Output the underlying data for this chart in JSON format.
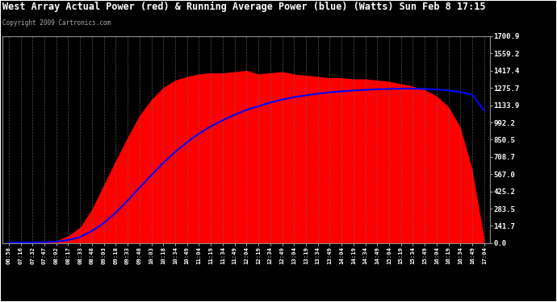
{
  "title": "West Array Actual Power (red) & Running Average Power (blue) (Watts) Sun Feb 8 17:15",
  "copyright": "Copyright 2009 Cartronics.com",
  "ylabel_values": [
    0.0,
    141.7,
    283.5,
    425.2,
    567.0,
    708.7,
    850.5,
    992.2,
    1133.9,
    1275.7,
    1417.4,
    1559.2,
    1700.9
  ],
  "ymax": 1700.9,
  "ymin": 0.0,
  "bg_color": "#000000",
  "plot_bg_color": "#000000",
  "grid_color": "#666666",
  "title_color": "#ffffff",
  "tick_color": "#ffffff",
  "red_color": "#ff0000",
  "blue_color": "#0000ff",
  "x_labels": [
    "06:58",
    "07:16",
    "07:32",
    "07:47",
    "08:02",
    "08:17",
    "08:33",
    "08:48",
    "09:03",
    "09:18",
    "09:33",
    "09:48",
    "10:03",
    "10:18",
    "10:34",
    "10:49",
    "11:04",
    "11:19",
    "11:34",
    "11:49",
    "12:04",
    "12:19",
    "12:34",
    "12:49",
    "13:04",
    "13:19",
    "13:34",
    "13:49",
    "14:04",
    "14:19",
    "14:34",
    "14:49",
    "15:04",
    "15:19",
    "15:34",
    "15:49",
    "16:04",
    "16:19",
    "16:34",
    "16:49",
    "17:04"
  ],
  "actual_power": [
    5,
    5,
    8,
    12,
    20,
    60,
    130,
    280,
    480,
    680,
    870,
    1050,
    1180,
    1280,
    1340,
    1370,
    1390,
    1400,
    1400,
    1410,
    1420,
    1390,
    1400,
    1410,
    1390,
    1380,
    1370,
    1360,
    1360,
    1350,
    1350,
    1340,
    1330,
    1310,
    1290,
    1260,
    1210,
    1120,
    950,
    600,
    30
  ],
  "running_avg": [
    5,
    5,
    6,
    8,
    12,
    25,
    50,
    100,
    165,
    250,
    350,
    455,
    560,
    660,
    750,
    830,
    900,
    960,
    1010,
    1055,
    1095,
    1125,
    1155,
    1180,
    1200,
    1215,
    1228,
    1240,
    1248,
    1255,
    1260,
    1265,
    1268,
    1270,
    1270,
    1268,
    1263,
    1255,
    1242,
    1220,
    1090
  ]
}
